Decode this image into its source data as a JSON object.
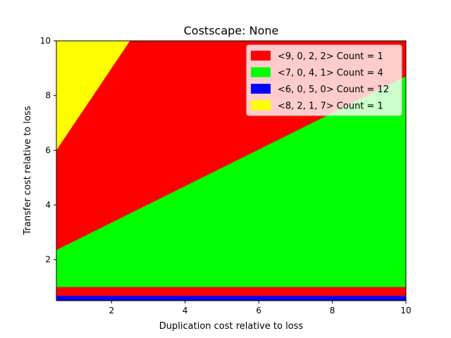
{
  "chart_data": {
    "type": "area",
    "title": "Costscape: None",
    "xlabel": "Duplication cost relative to loss",
    "ylabel": "Transfer cost relative to loss",
    "xlim": [
      0.5,
      10
    ],
    "ylim": [
      0.5,
      10
    ],
    "xticks": [
      2,
      4,
      6,
      8,
      10
    ],
    "yticks": [
      2,
      4,
      6,
      8,
      10
    ],
    "grid": false,
    "legend_position": "top-right",
    "series": [
      {
        "name": "<9, 0, 2, 2> Count = 1",
        "color": "#ff0000"
      },
      {
        "name": "<7, 0, 4, 1> Count = 4",
        "color": "#00ff00"
      },
      {
        "name": "<6, 0, 5, 0> Count = 12",
        "color": "#0000ff"
      },
      {
        "name": "<8, 2, 1, 7> Count = 1",
        "color": "#ffff00"
      }
    ],
    "regions": [
      {
        "series": 0,
        "polygon": [
          [
            0.5,
            0.5
          ],
          [
            10,
            0.5
          ],
          [
            10,
            10
          ],
          [
            0.5,
            10
          ]
        ]
      },
      {
        "series": 1,
        "polygon": [
          [
            0.5,
            1
          ],
          [
            10,
            1
          ],
          [
            10,
            8.7
          ],
          [
            0.5,
            2.35
          ]
        ]
      },
      {
        "series": 3,
        "polygon": [
          [
            0.5,
            6
          ],
          [
            2.5,
            10
          ],
          [
            0.5,
            10
          ]
        ]
      },
      {
        "series": 2,
        "polygon": [
          [
            0.5,
            0.5
          ],
          [
            10,
            0.5
          ],
          [
            10,
            0.67
          ],
          [
            0.5,
            0.67
          ]
        ]
      }
    ]
  }
}
